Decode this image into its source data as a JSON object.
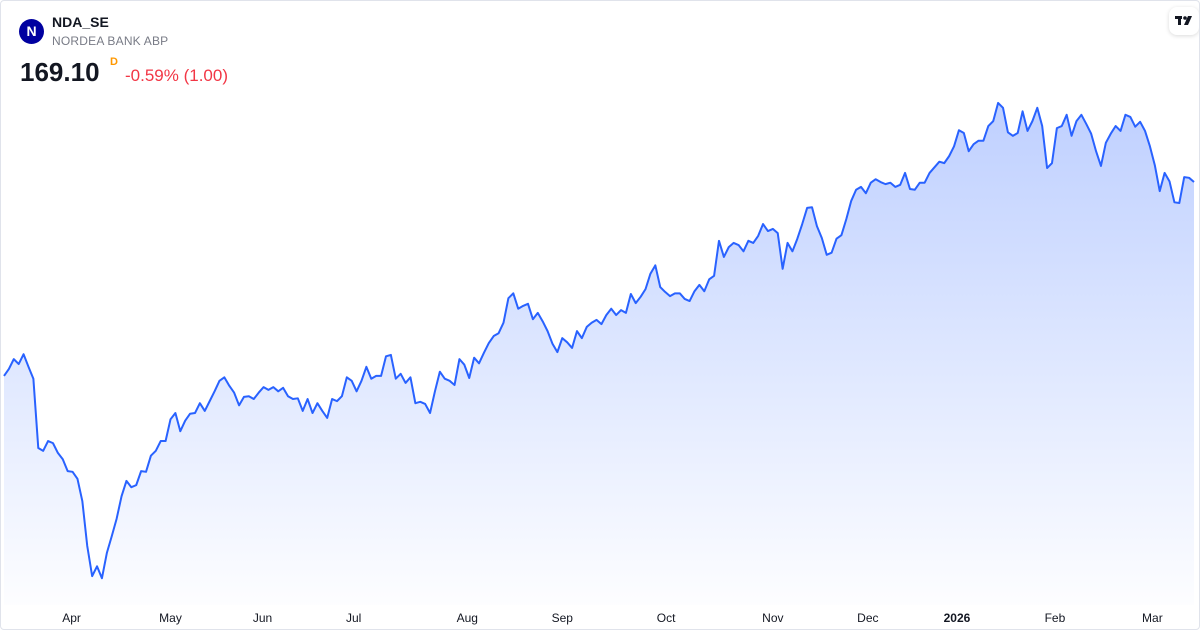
{
  "header": {
    "logo": "N",
    "symbol": "NDA_SE",
    "name": "NORDEA BANK ABP",
    "price": "169.10",
    "interval": "D",
    "change": "-0.59% (1.00)"
  },
  "chart_data": {
    "type": "area",
    "color": "#2962ff",
    "values": [
      141.4,
      142.4,
      143.8,
      143.1,
      144.5,
      142.7,
      141.0,
      131.1,
      130.7,
      132.1,
      131.8,
      130.4,
      129.5,
      127.8,
      127.7,
      126.7,
      123.5,
      117.1,
      112.8,
      114.2,
      112.5,
      116.1,
      118.5,
      121.0,
      124.2,
      126.4,
      125.5,
      125.8,
      127.8,
      127.7,
      130.0,
      130.7,
      132.1,
      132.1,
      135.2,
      136.1,
      133.5,
      135.0,
      136.0,
      136.1,
      137.5,
      136.4,
      137.8,
      139.2,
      140.7,
      141.2,
      140.0,
      139.0,
      137.2,
      138.4,
      138.5,
      138.1,
      139.0,
      139.8,
      139.4,
      139.8,
      139.2,
      139.7,
      138.5,
      138.1,
      138.2,
      136.4,
      138.1,
      136.1,
      137.5,
      136.4,
      135.4,
      138.1,
      137.8,
      138.5,
      141.2,
      140.7,
      139.2,
      140.7,
      142.7,
      141.0,
      141.4,
      141.4,
      144.2,
      144.4,
      141.0,
      141.7,
      140.4,
      141.2,
      137.5,
      137.7,
      137.4,
      136.1,
      139.2,
      142.0,
      141.0,
      140.7,
      140.1,
      143.8,
      143.0,
      141.1,
      144.0,
      143.2,
      144.7,
      146.1,
      147.1,
      147.5,
      149.0,
      152.5,
      153.2,
      151.0,
      151.4,
      151.7,
      149.5,
      150.4,
      149.2,
      147.8,
      146.0,
      144.8,
      146.8,
      146.2,
      145.4,
      147.8,
      146.8,
      148.4,
      149.0,
      149.4,
      148.8,
      150.1,
      151.0,
      150.1,
      150.8,
      150.4,
      153.1,
      151.8,
      152.7,
      153.8,
      156.0,
      157.2,
      154.1,
      153.4,
      152.8,
      153.2,
      153.2,
      152.4,
      152.1,
      153.5,
      154.4,
      153.5,
      155.2,
      155.7,
      160.7,
      158.4,
      159.8,
      160.4,
      160.1,
      159.2,
      160.7,
      160.4,
      161.4,
      163.1,
      162.1,
      162.4,
      161.8,
      156.7,
      160.4,
      159.2,
      161.0,
      163.1,
      165.4,
      165.5,
      162.8,
      161.1,
      158.7,
      159.0,
      161.0,
      161.5,
      163.8,
      166.4,
      168.0,
      168.4,
      167.5,
      169.0,
      169.5,
      169.1,
      168.8,
      169.0,
      168.4,
      168.7,
      170.4,
      168.1,
      168.0,
      169.0,
      169.0,
      170.4,
      171.2,
      172.0,
      171.8,
      172.8,
      174.2,
      176.5,
      176.1,
      173.5,
      174.5,
      175.0,
      175.0,
      177.1,
      177.8,
      180.4,
      179.7,
      176.2,
      175.7,
      176.1,
      179.2,
      176.4,
      177.8,
      179.7,
      177.1,
      171.1,
      171.8,
      176.8,
      177.1,
      178.7,
      175.7,
      177.8,
      178.7,
      177.4,
      176.0,
      173.5,
      171.4,
      174.7,
      176.0,
      177.1,
      176.4,
      178.7,
      178.4,
      177.0,
      177.7,
      176.4,
      174.2,
      171.5,
      167.8,
      170.4,
      169.2,
      166.2,
      166.1,
      169.8,
      169.7,
      169.1
    ],
    "ylim": [
      105,
      190
    ],
    "xticks": [
      {
        "value": 13.8,
        "label": "Apr"
      },
      {
        "value": 34,
        "label": "May"
      },
      {
        "value": 52.8,
        "label": "Jun"
      },
      {
        "value": 71.4,
        "label": "Jul"
      },
      {
        "value": 94.6,
        "label": "Aug"
      },
      {
        "value": 114,
        "label": "Sep"
      },
      {
        "value": 135.2,
        "label": "Oct"
      },
      {
        "value": 157,
        "label": "Nov"
      },
      {
        "value": 176.4,
        "label": "Dec"
      },
      {
        "value": 194.6,
        "label": "2026"
      },
      {
        "value": 214.6,
        "label": "Feb"
      },
      {
        "value": 234.5,
        "label": "Mar"
      }
    ]
  }
}
